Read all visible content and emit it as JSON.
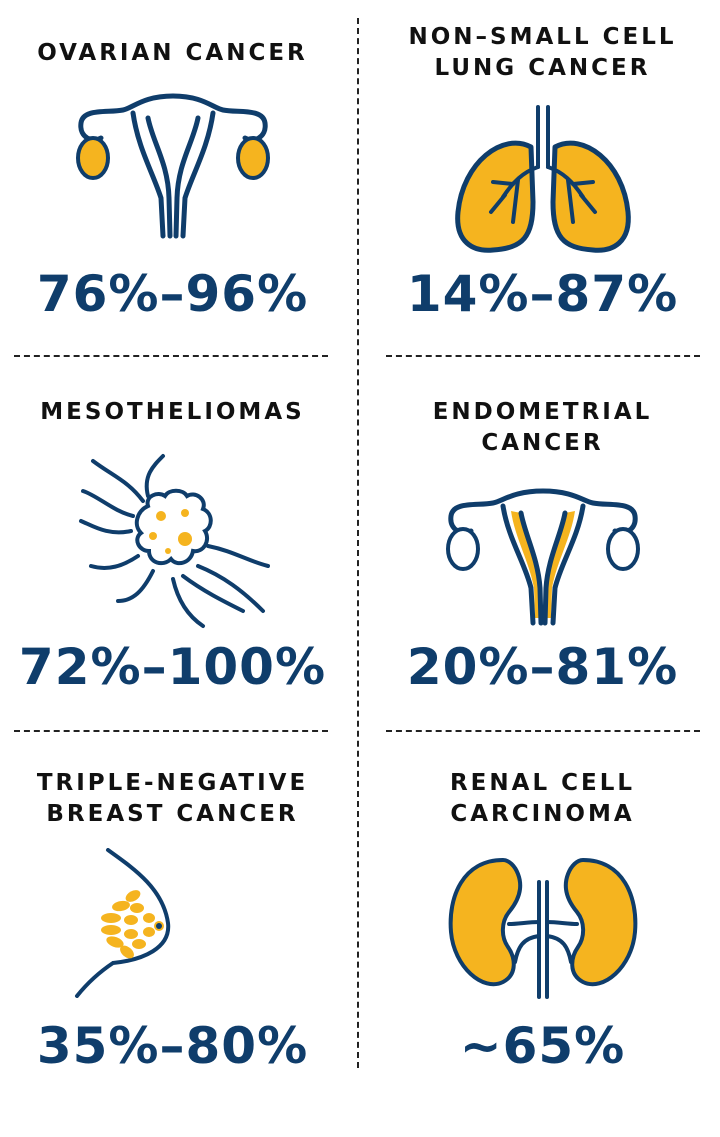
{
  "colors": {
    "navy": "#0f3d6b",
    "gold": "#f5b41f",
    "text": "#111111"
  },
  "cards": [
    {
      "title": "OVARIAN CANCER",
      "icon": "uterus-ovaries-icon",
      "range": "76%–96%"
    },
    {
      "title": "NON–SMALL CELL\nLUNG CANCER",
      "icon": "lungs-icon",
      "range": "14%–87%"
    },
    {
      "title": "MESOTHELIOMAS",
      "icon": "tumor-cell-icon",
      "range": "72%–100%"
    },
    {
      "title": "ENDOMETRIAL\nCANCER",
      "icon": "uterus-endometrium-icon",
      "range": "20%–81%"
    },
    {
      "title": "TRIPLE-NEGATIVE\nBREAST CANCER",
      "icon": "breast-icon",
      "range": "35%–80%"
    },
    {
      "title": "RENAL CELL\nCARCINOMA",
      "icon": "kidneys-icon",
      "range": "~65%"
    }
  ]
}
